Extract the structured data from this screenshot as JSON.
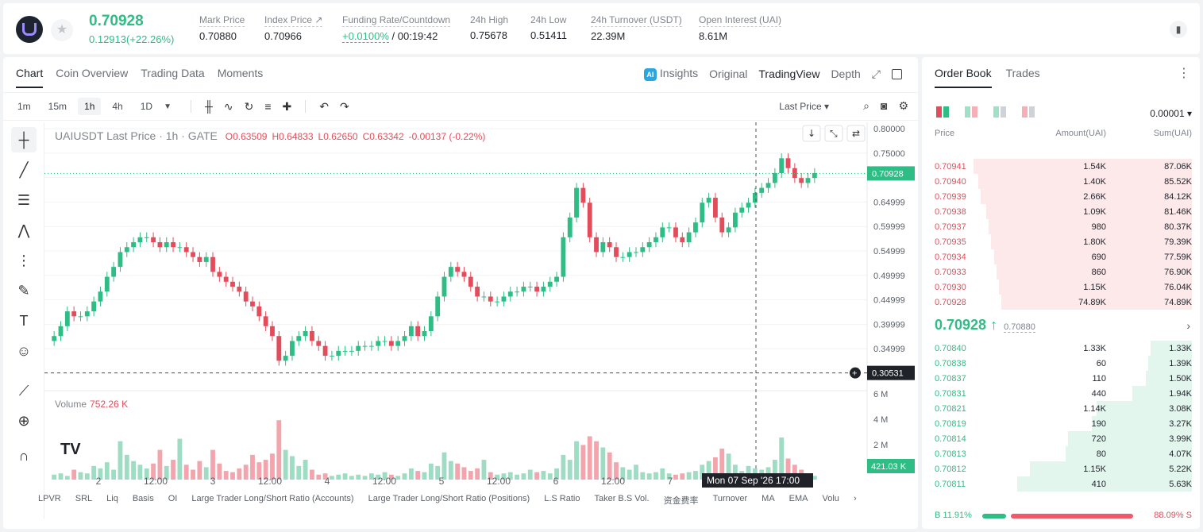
{
  "ticker": {
    "last_price": "0.70928",
    "change": "0.12913(+22.26%)",
    "stats": [
      {
        "label": "Mark Price",
        "value": "0.70880"
      },
      {
        "label": "Index Price ↗",
        "value": "0.70966"
      },
      {
        "label": "Funding Rate/Countdown",
        "value": "+0.0100%",
        "extra": " / 00:19:42"
      },
      {
        "label": "24h High",
        "value": "0.75678"
      },
      {
        "label": "24h Low",
        "value": "0.51411"
      },
      {
        "label": "24h Turnover (USDT)",
        "value": "22.39M"
      },
      {
        "label": "Open Interest (UAI)",
        "value": "8.61M"
      }
    ]
  },
  "chart_tabs": [
    "Chart",
    "Coin Overview",
    "Trading Data",
    "Moments"
  ],
  "view_tabs": {
    "insights": "Insights",
    "original": "Original",
    "tradingview": "TradingView",
    "depth": "Depth"
  },
  "intervals": [
    "1m",
    "15m",
    "1h",
    "4h",
    "1D"
  ],
  "active_interval": "1h",
  "last_price_select": "Last Price ▾",
  "legend": {
    "symbol": "UAIUSDT Last Price · 1h · GATE",
    "o": "O0.63509",
    "h": "H0.64833",
    "l": "L0.62650",
    "c": "C0.63342",
    "chg": "-0.00137 (-0.22%)"
  },
  "volume": {
    "label": "Volume",
    "value": "752.26 K"
  },
  "chart_data": {
    "type": "candlestick",
    "price_axis": [
      "0.80000",
      "0.75000",
      "0.70928",
      "0.64999",
      "0.59999",
      "0.54999",
      "0.49999",
      "0.44999",
      "0.39999",
      "0.34999",
      "0.30531"
    ],
    "volume_axis": [
      "6 M",
      "4 M",
      "2 M",
      "421.03 K"
    ],
    "x_labels": [
      "2",
      "12:00",
      "3",
      "12:00",
      "4",
      "12:00",
      "5",
      "12:00",
      "6",
      "12:00",
      "7",
      "12:00"
    ],
    "crosshair_label": "Mon 07 Sep '26   17:00",
    "current_price": 0.70928,
    "crosshair_price": 0.30531,
    "closes": [
      0.38,
      0.4,
      0.43,
      0.42,
      0.42,
      0.43,
      0.45,
      0.47,
      0.5,
      0.52,
      0.55,
      0.56,
      0.57,
      0.58,
      0.58,
      0.57,
      0.56,
      0.57,
      0.56,
      0.56,
      0.55,
      0.54,
      0.53,
      0.54,
      0.51,
      0.5,
      0.49,
      0.48,
      0.47,
      0.45,
      0.44,
      0.42,
      0.4,
      0.38,
      0.33,
      0.34,
      0.37,
      0.38,
      0.39,
      0.37,
      0.36,
      0.34,
      0.34,
      0.35,
      0.35,
      0.35,
      0.36,
      0.36,
      0.36,
      0.37,
      0.37,
      0.36,
      0.37,
      0.38,
      0.4,
      0.38,
      0.39,
      0.42,
      0.46,
      0.5,
      0.52,
      0.51,
      0.5,
      0.48,
      0.46,
      0.46,
      0.45,
      0.45,
      0.46,
      0.47,
      0.47,
      0.48,
      0.48,
      0.47,
      0.48,
      0.49,
      0.5,
      0.58,
      0.62,
      0.68,
      0.65,
      0.58,
      0.55,
      0.57,
      0.56,
      0.54,
      0.54,
      0.55,
      0.55,
      0.56,
      0.57,
      0.58,
      0.6,
      0.6,
      0.58,
      0.57,
      0.59,
      0.61,
      0.65,
      0.66,
      0.62,
      0.59,
      0.6,
      0.63,
      0.64,
      0.65,
      0.67,
      0.68,
      0.69,
      0.71,
      0.74,
      0.72,
      0.7,
      0.69,
      0.7,
      0.71
    ],
    "volumes": [
      0.4,
      0.5,
      0.3,
      0.8,
      0.6,
      0.5,
      1.1,
      0.9,
      1.4,
      0.8,
      3.1,
      2.0,
      1.5,
      1.2,
      0.9,
      1.3,
      2.4,
      1.1,
      1.6,
      3.3,
      1.2,
      0.8,
      1.5,
      1.0,
      2.4,
      1.3,
      0.7,
      0.6,
      0.9,
      1.2,
      2.0,
      1.4,
      1.6,
      2.1,
      4.8,
      2.4,
      1.9,
      1.1,
      1.6,
      0.8,
      0.4,
      0.5,
      0.3,
      0.4,
      0.5,
      0.3,
      0.4,
      0.3,
      0.5,
      0.4,
      0.6,
      0.4,
      0.3,
      0.5,
      0.9,
      0.7,
      0.6,
      1.3,
      1.1,
      2.2,
      1.5,
      1.3,
      1.0,
      0.7,
      0.9,
      1.6,
      0.6,
      0.4,
      0.5,
      0.6,
      0.4,
      0.5,
      0.8,
      0.6,
      0.7,
      0.5,
      0.9,
      2.0,
      1.6,
      3.1,
      2.8,
      3.5,
      3.1,
      2.6,
      2.2,
      1.4,
      1.0,
      0.8,
      1.2,
      0.6,
      0.5,
      0.6,
      0.9,
      0.5,
      0.4,
      0.5,
      0.6,
      0.7,
      1.2,
      1.5,
      1.8,
      2.5,
      2.1,
      1.2,
      0.7,
      1.1,
      0.9,
      0.8,
      1.0,
      1.6,
      3.4,
      1.7,
      1.2,
      0.8,
      0.5,
      0.3
    ]
  },
  "indicators": [
    "LPVR",
    "SRL",
    "Liq",
    "Basis",
    "OI",
    "Large Trader Long/Short Ratio (Accounts)",
    "Large Trader Long/Short Ratio (Positions)",
    "L.S Ratio",
    "Taker B.S Vol.",
    "资金费率",
    "Turnover",
    "MA",
    "EMA",
    "Volu"
  ],
  "orderbook": {
    "tabs": [
      "Order Book",
      "Trades"
    ],
    "precision": "0.00001 ▾",
    "headers": [
      "Price",
      "Amount(UAI)",
      "Sum(UAI)"
    ],
    "asks": [
      {
        "price": "0.70941",
        "amount": "1.54K",
        "sum": "87.06K",
        "depth": 0.85
      },
      {
        "price": "0.70940",
        "amount": "1.40K",
        "sum": "85.52K",
        "depth": 0.83
      },
      {
        "price": "0.70939",
        "amount": "2.66K",
        "sum": "84.12K",
        "depth": 0.82
      },
      {
        "price": "0.70938",
        "amount": "1.09K",
        "sum": "81.46K",
        "depth": 0.8
      },
      {
        "price": "0.70937",
        "amount": "980",
        "sum": "80.37K",
        "depth": 0.79
      },
      {
        "price": "0.70935",
        "amount": "1.80K",
        "sum": "79.39K",
        "depth": 0.78
      },
      {
        "price": "0.70934",
        "amount": "690",
        "sum": "77.59K",
        "depth": 0.77
      },
      {
        "price": "0.70933",
        "amount": "860",
        "sum": "76.90K",
        "depth": 0.76
      },
      {
        "price": "0.70930",
        "amount": "1.15K",
        "sum": "76.04K",
        "depth": 0.75
      },
      {
        "price": "0.70928",
        "amount": "74.89K",
        "sum": "74.89K",
        "depth": 0.74
      }
    ],
    "mid_price": "0.70928 ↑",
    "mark_price": "0.70880",
    "bids": [
      {
        "price": "0.70840",
        "amount": "1.33K",
        "sum": "1.33K",
        "depth": 0.16
      },
      {
        "price": "0.70838",
        "amount": "60",
        "sum": "1.39K",
        "depth": 0.17
      },
      {
        "price": "0.70837",
        "amount": "110",
        "sum": "1.50K",
        "depth": 0.18
      },
      {
        "price": "0.70831",
        "amount": "440",
        "sum": "1.94K",
        "depth": 0.23
      },
      {
        "price": "0.70821",
        "amount": "1.14K",
        "sum": "3.08K",
        "depth": 0.37
      },
      {
        "price": "0.70819",
        "amount": "190",
        "sum": "3.27K",
        "depth": 0.39
      },
      {
        "price": "0.70814",
        "amount": "720",
        "sum": "3.99K",
        "depth": 0.48
      },
      {
        "price": "0.70813",
        "amount": "80",
        "sum": "4.07K",
        "depth": 0.49
      },
      {
        "price": "0.70812",
        "amount": "1.15K",
        "sum": "5.22K",
        "depth": 0.63
      },
      {
        "price": "0.70811",
        "amount": "410",
        "sum": "5.63K",
        "depth": 0.68
      }
    ],
    "buy_ratio": "B 11.91%",
    "sell_ratio": "88.09% S"
  },
  "colors": {
    "up": "#2dbd85",
    "down": "#e34d5b"
  }
}
